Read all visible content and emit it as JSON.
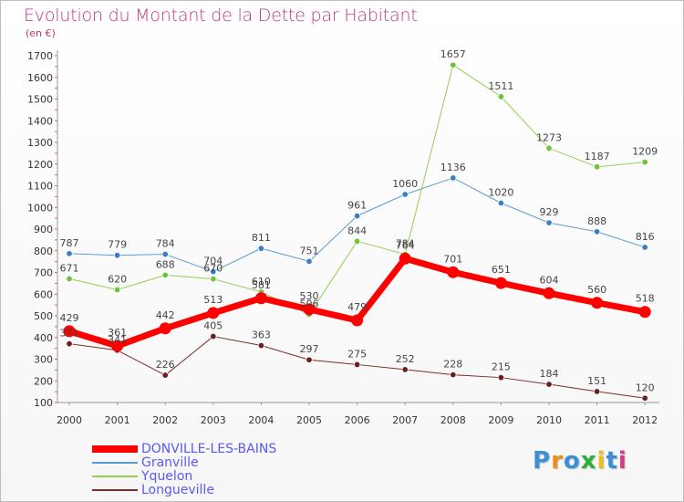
{
  "header": {
    "title": "Evolution du Montant de la Dette par Habitant",
    "subtitle": "(en €)"
  },
  "logo": {
    "text": "Proxiti",
    "colors": [
      "#3a8fd8",
      "#f28c1a",
      "#3a8fd8",
      "#2bb03b",
      "#e8c21a",
      "#3a8fd8",
      "#d83a8a"
    ]
  },
  "colors": {
    "title": "#c2357f",
    "legend_text": "#5a5af0"
  },
  "chart_data": {
    "type": "line",
    "title": "Evolution du Montant de la Dette par Habitant",
    "ylabel": "(en €)",
    "xlabel": "",
    "categories": [
      "2000",
      "2001",
      "2002",
      "2003",
      "2004",
      "2005",
      "2006",
      "2007",
      "2008",
      "2009",
      "2010",
      "2011",
      "2012"
    ],
    "ylim": [
      100,
      1700
    ],
    "yticks": [
      100,
      200,
      300,
      400,
      500,
      600,
      700,
      800,
      900,
      1000,
      1100,
      1200,
      1300,
      1400,
      1500,
      1600,
      1700
    ],
    "grid": false,
    "legend_position": "bottom-left",
    "series": [
      {
        "name": "Granville",
        "color": "#5b9bd5",
        "dot": "#3a7fc4",
        "width": 1,
        "values": [
          787,
          779,
          784,
          704,
          811,
          751,
          961,
          1060,
          1136,
          1020,
          929,
          888,
          816
        ],
        "labels": [
          "787",
          "779",
          "784",
          "704",
          "811",
          "751",
          "961",
          "1060",
          "1136",
          "1020",
          "929",
          "888",
          "816"
        ]
      },
      {
        "name": "Yquelon",
        "color": "#92d050",
        "dot": "#6fc23a",
        "width": 1,
        "values": [
          671,
          620,
          688,
          670,
          610,
          506,
          844,
          784,
          1657,
          1511,
          1273,
          1187,
          1209
        ],
        "labels": [
          "671",
          "620",
          "688",
          "670",
          "610",
          "506",
          "844",
          "784",
          "1657",
          "1511",
          "1273",
          "1187",
          "1209"
        ]
      },
      {
        "name": "Longueville",
        "color": "#7b2c2c",
        "dot": "#6a1f1f",
        "width": 1,
        "values": [
          371,
          341,
          226,
          405,
          363,
          297,
          275,
          252,
          228,
          215,
          184,
          151,
          120
        ],
        "labels": [
          "371",
          "341",
          "226",
          "405",
          "363",
          "297",
          "275",
          "252",
          "228",
          "215",
          "184",
          "151",
          "120"
        ]
      },
      {
        "name": "DONVILLE-LES-BAINS",
        "color": "#ff0000",
        "dot": "#ff0000",
        "width": 7,
        "values": [
          429,
          361,
          442,
          513,
          581,
          530,
          479,
          764,
          701,
          651,
          604,
          560,
          518
        ],
        "labels": [
          "429",
          "361",
          "442",
          "513",
          "581",
          "530",
          "479",
          "764",
          "701",
          "651",
          "604",
          "560",
          "518"
        ]
      }
    ],
    "legend_order": [
      "DONVILLE-LES-BAINS",
      "Granville",
      "Yquelon",
      "Longueville"
    ]
  }
}
